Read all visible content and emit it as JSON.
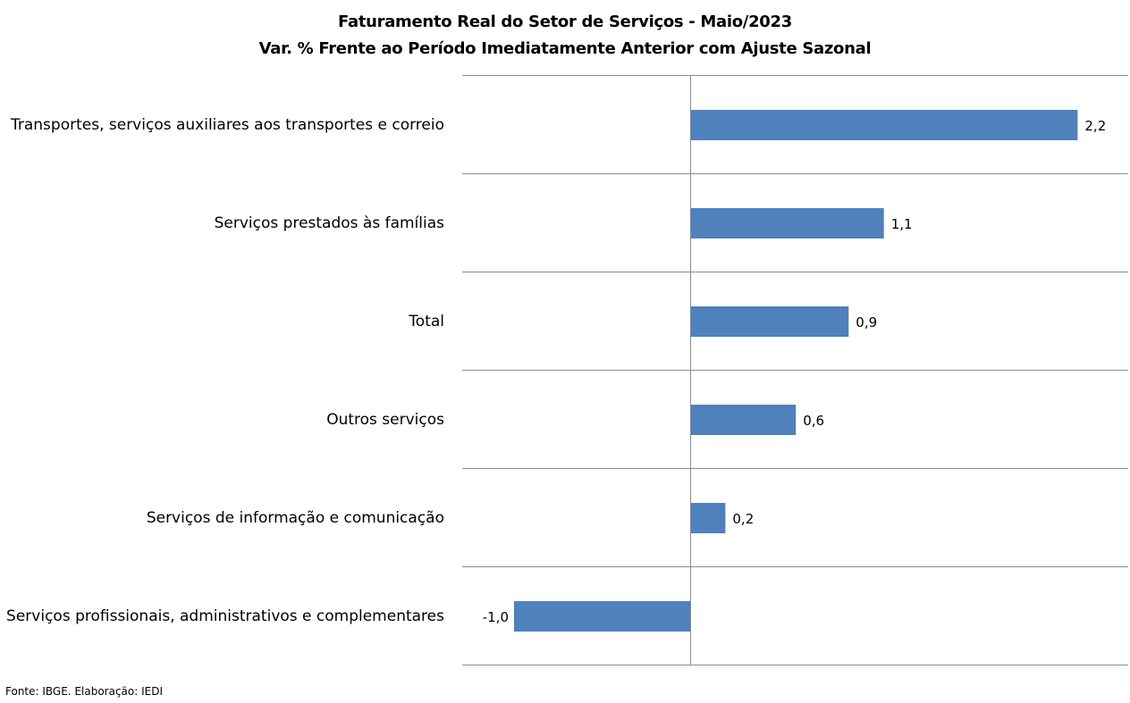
{
  "chart_data": {
    "type": "bar",
    "orientation": "horizontal",
    "title": "Faturamento Real do Setor de Serviços - Maio/2023",
    "subtitle": "Var. % Frente ao Período Imediatamente Anterior com Ajuste Sazonal",
    "categories": [
      "Transportes, serviços auxiliares aos transportes e correio",
      "Serviços prestados às famílias",
      "Total",
      "Outros serviços",
      "Serviços de informação e comunicação",
      "Serviços profissionais, administrativos e complementares"
    ],
    "values": [
      2.2,
      1.1,
      0.9,
      0.6,
      0.2,
      -1.0
    ],
    "value_labels": [
      "2,2",
      "1,1",
      "0,9",
      "0,6",
      "0,2",
      "-1,0"
    ],
    "xlim": [
      -1.3,
      2.5
    ],
    "bar_color": "#4f81bd",
    "grid": "horizontal separators between categories",
    "legend": "none"
  },
  "source": "Fonte: IBGE. Elaboração: IEDI"
}
